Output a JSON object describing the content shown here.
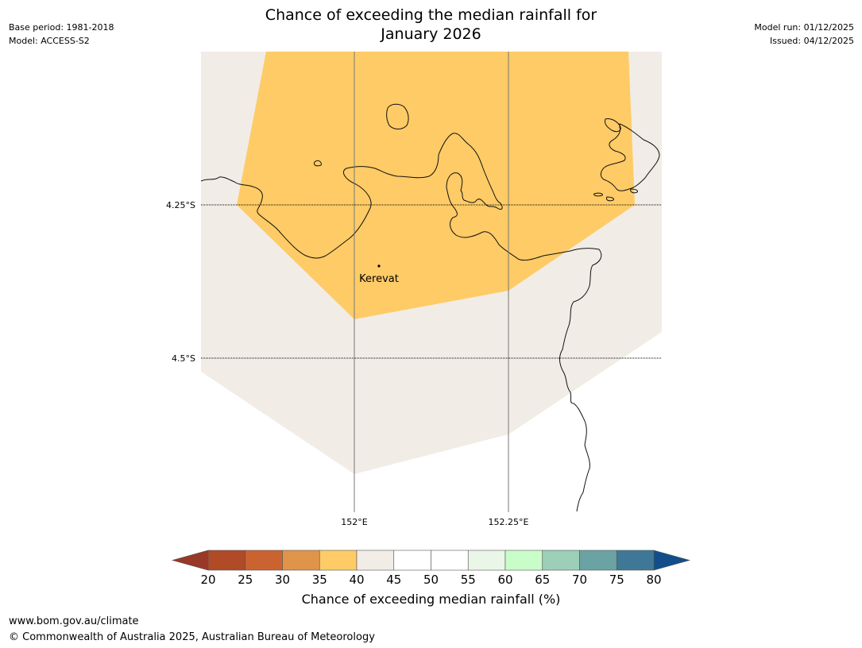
{
  "title_line1": "Chance of exceeding the median rainfall for",
  "title_line2": "January 2026",
  "meta_left": {
    "base_period": "Base period: 1981-2018",
    "model": "Model: ACCESS-S2"
  },
  "meta_right": {
    "model_run": "Model run: 01/12/2025",
    "issued": "Issued: 04/12/2025"
  },
  "map": {
    "latitudes": [
      "4.25°S",
      "4.5°S"
    ],
    "longitudes": [
      "152°E",
      "152.25°E"
    ],
    "place": "Kerevat",
    "region_colors": {
      "high_band": "#fecb66",
      "mid_band": "#f1ece6"
    }
  },
  "colorbar": {
    "title": "Chance of exceeding median rainfall (%)",
    "ticks": [
      "20",
      "25",
      "30",
      "35",
      "40",
      "45",
      "50",
      "55",
      "60",
      "65",
      "70",
      "75",
      "80"
    ],
    "colors": [
      "#b04a27",
      "#cb6330",
      "#e0944a",
      "#fecb66",
      "#f1ece6",
      "#ffffff",
      "#ffffff",
      "#eaf6e8",
      "#c8fcc8",
      "#9ccfb7",
      "#6ba3a5",
      "#3e7896"
    ],
    "under_color": "#983827",
    "over_color": "#124f8a"
  },
  "footer": {
    "url": "www.bom.gov.au/climate",
    "copyright": "© Commonwealth of Australia 2025, Australian Bureau of Meteorology"
  }
}
